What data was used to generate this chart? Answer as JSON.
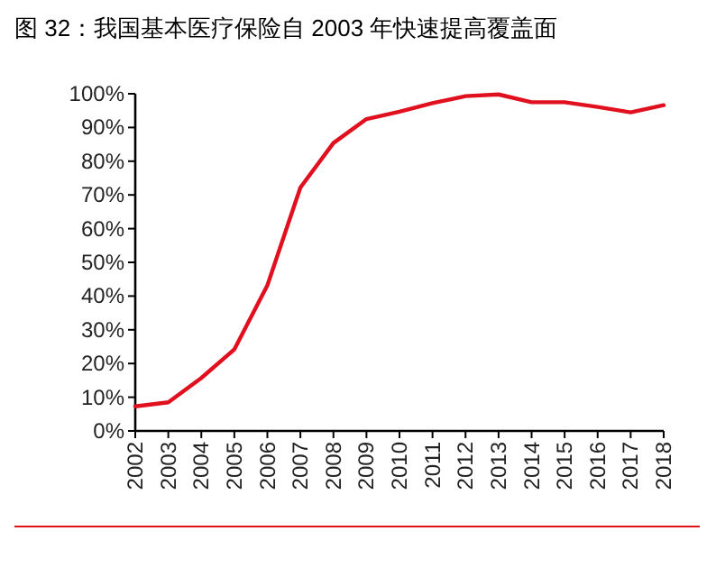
{
  "chart_data": {
    "type": "line",
    "title": "图 32：我国基本医疗保险自 2003 年快速提高覆盖面",
    "categories": [
      "2002",
      "2003",
      "2004",
      "2005",
      "2006",
      "2007",
      "2008",
      "2009",
      "2010",
      "2011",
      "2012",
      "2013",
      "2014",
      "2015",
      "2016",
      "2017",
      "2018"
    ],
    "series": [
      {
        "color": "#e0101e",
        "values": [
          7.3,
          8.5,
          15.7,
          24.2,
          43.2,
          72.2,
          85.4,
          92.5,
          94.7,
          97.2,
          99.3,
          99.8,
          97.5,
          97.5,
          96.1,
          94.5,
          96.6
        ]
      }
    ],
    "ylim": [
      0,
      100
    ],
    "yticks": [
      {
        "value": 0,
        "label": "0%"
      },
      {
        "value": 10,
        "label": "10%"
      },
      {
        "value": 20,
        "label": "20%"
      },
      {
        "value": 30,
        "label": "30%"
      },
      {
        "value": 40,
        "label": "40%"
      },
      {
        "value": 50,
        "label": "50%"
      },
      {
        "value": 60,
        "label": "60%"
      },
      {
        "value": 70,
        "label": "70%"
      },
      {
        "value": 80,
        "label": "80%"
      },
      {
        "value": 90,
        "label": "90%"
      },
      {
        "value": 100,
        "label": "100%"
      }
    ],
    "grid": false,
    "marker": "none",
    "line_style": "solid"
  }
}
